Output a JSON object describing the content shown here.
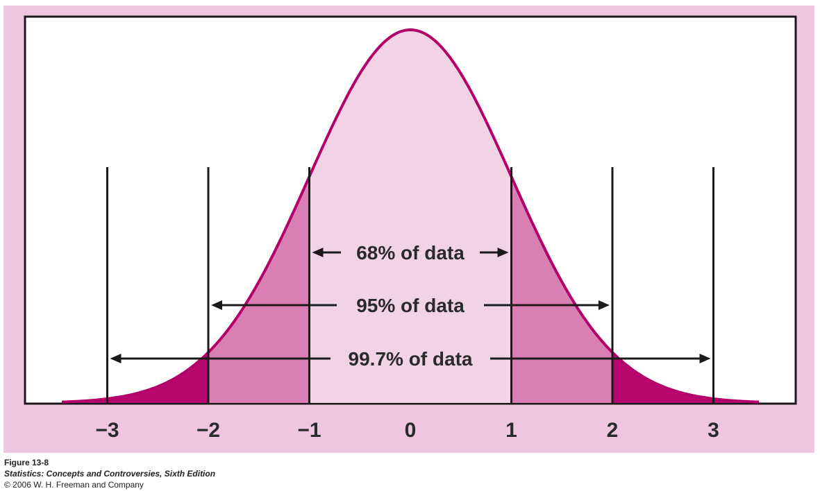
{
  "chart_data": {
    "type": "area",
    "distribution": "standard normal",
    "x_range": [
      -3.45,
      3.45
    ],
    "xlim": [
      -4,
      4
    ],
    "ticks": [
      "−3",
      "−2",
      "−1",
      "0",
      "1",
      "2",
      "3"
    ],
    "tick_values": [
      -3,
      -2,
      -1,
      0,
      1,
      2,
      3
    ],
    "boundaries": [
      -3,
      -2,
      -1,
      1,
      2,
      3
    ],
    "regions": [
      {
        "from": -1,
        "to": 1,
        "color": "#f2d3e6"
      },
      {
        "from": -2,
        "to": -1,
        "color": "#d97fb3"
      },
      {
        "from": 1,
        "to": 2,
        "color": "#d97fb3"
      },
      {
        "from": -3.45,
        "to": -2,
        "color": "#b8066f"
      },
      {
        "from": 2,
        "to": 3.45,
        "color": "#b8066f"
      }
    ],
    "annotations": [
      {
        "label": "68% of data",
        "from": -1,
        "to": 1
      },
      {
        "label": "95% of data",
        "from": -2,
        "to": 2
      },
      {
        "label": "99.7% of data",
        "from": -3,
        "to": 3
      }
    ],
    "colors": {
      "curve": "#b3006b",
      "background": "#efc6df",
      "axis": "#1a1a1a"
    }
  },
  "caption": {
    "figure": "Figure 13-8",
    "book": "Statistics: Concepts and Controversies, Sixth Edition",
    "copyright": "© 2006 W. H. Freeman and Company"
  }
}
